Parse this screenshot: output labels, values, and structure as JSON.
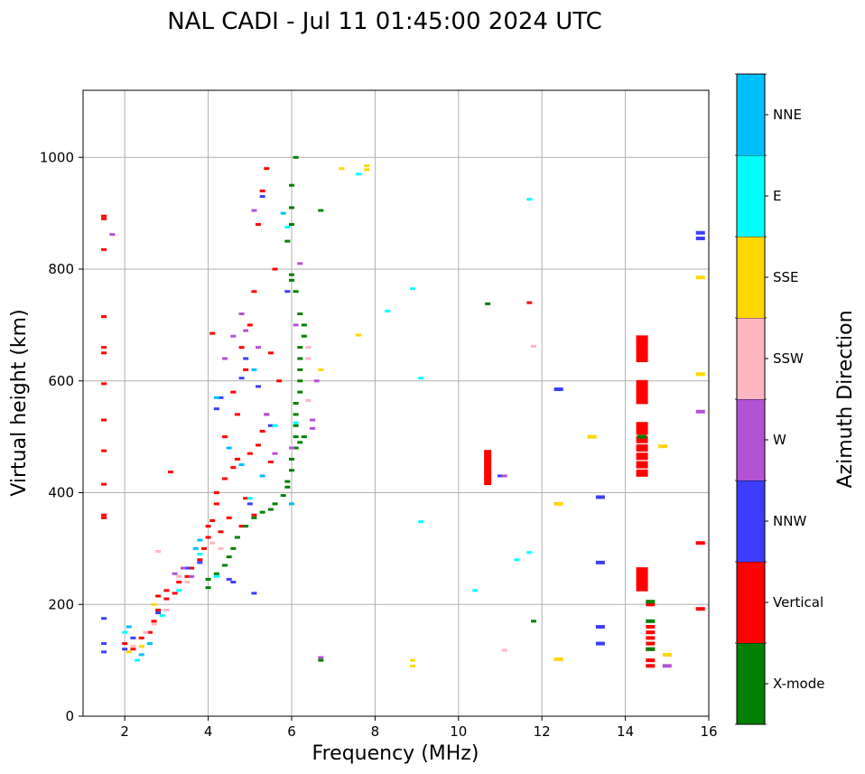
{
  "chart_data": {
    "type": "scatter",
    "title": "NAL CADI - Jul 11 01:45:00 2024 UTC",
    "xlabel": "Frequency (MHz)",
    "ylabel": "Virtual height (km)",
    "xlim": [
      1,
      16
    ],
    "ylim": [
      0,
      1120
    ],
    "grid": true,
    "xticks": [
      2,
      4,
      6,
      8,
      10,
      12,
      14,
      16
    ],
    "yticks": [
      0,
      200,
      400,
      600,
      800,
      1000
    ],
    "colorbar": {
      "label": "Azimuth Direction",
      "position": "right",
      "categories": [
        {
          "name": "X-mode",
          "color": "#008000"
        },
        {
          "name": "Vertical",
          "color": "#ff0000"
        },
        {
          "name": "NNW",
          "color": "#3d3dff"
        },
        {
          "name": "W",
          "color": "#b452d6"
        },
        {
          "name": "SSW",
          "color": "#ffb6c1"
        },
        {
          "name": "SSE",
          "color": "#ffd700"
        },
        {
          "name": "E",
          "color": "#00ffff"
        },
        {
          "name": "NNE",
          "color": "#00bfff"
        }
      ]
    },
    "series": [
      {
        "name": "Vertical",
        "points": [
          [
            1.5,
            895
          ],
          [
            1.5,
            890
          ],
          [
            1.5,
            835
          ],
          [
            1.5,
            715
          ],
          [
            1.5,
            660
          ],
          [
            1.5,
            650
          ],
          [
            1.5,
            595
          ],
          [
            1.5,
            530
          ],
          [
            1.5,
            475
          ],
          [
            1.5,
            415
          ],
          [
            1.5,
            360
          ],
          [
            1.5,
            355
          ],
          [
            2.0,
            130
          ],
          [
            2.2,
            120
          ],
          [
            2.4,
            140
          ],
          [
            2.6,
            150
          ],
          [
            2.7,
            170
          ],
          [
            2.8,
            190
          ],
          [
            2.8,
            215
          ],
          [
            3.0,
            210
          ],
          [
            3.0,
            225
          ],
          [
            3.2,
            220
          ],
          [
            3.3,
            240
          ],
          [
            3.5,
            250
          ],
          [
            3.6,
            265
          ],
          [
            3.8,
            280
          ],
          [
            3.9,
            300
          ],
          [
            4.0,
            320
          ],
          [
            4.0,
            340
          ],
          [
            4.1,
            350
          ],
          [
            4.2,
            380
          ],
          [
            4.2,
            400
          ],
          [
            4.3,
            330
          ],
          [
            4.4,
            425
          ],
          [
            4.5,
            355
          ],
          [
            4.6,
            445
          ],
          [
            4.7,
            460
          ],
          [
            4.8,
            340
          ],
          [
            4.9,
            390
          ],
          [
            5.0,
            470
          ],
          [
            5.1,
            360
          ],
          [
            5.2,
            485
          ],
          [
            5.3,
            510
          ],
          [
            5.4,
            540
          ],
          [
            5.5,
            455
          ],
          [
            4.9,
            620
          ],
          [
            5.0,
            700
          ],
          [
            5.1,
            760
          ],
          [
            5.2,
            880
          ],
          [
            5.3,
            940
          ],
          [
            5.4,
            980
          ],
          [
            5.5,
            650
          ],
          [
            5.6,
            800
          ],
          [
            5.7,
            600
          ],
          [
            4.6,
            580
          ],
          [
            4.4,
            500
          ],
          [
            4.8,
            660
          ],
          [
            4.7,
            540
          ],
          [
            10.7,
            420
          ],
          [
            10.7,
            430
          ],
          [
            10.7,
            440
          ],
          [
            10.7,
            450
          ],
          [
            10.7,
            460
          ],
          [
            10.7,
            470
          ],
          [
            11.7,
            740
          ],
          [
            14.4,
            640
          ],
          [
            14.4,
            650
          ],
          [
            14.4,
            660
          ],
          [
            14.4,
            670
          ],
          [
            14.4,
            675
          ],
          [
            14.4,
            565
          ],
          [
            14.4,
            575
          ],
          [
            14.4,
            585
          ],
          [
            14.4,
            595
          ],
          [
            14.4,
            435
          ],
          [
            14.4,
            450
          ],
          [
            14.4,
            465
          ],
          [
            14.4,
            480
          ],
          [
            14.4,
            495
          ],
          [
            14.4,
            510
          ],
          [
            14.4,
            520
          ],
          [
            14.4,
            230
          ],
          [
            14.4,
            240
          ],
          [
            14.4,
            250
          ],
          [
            14.4,
            260
          ],
          [
            14.6,
            200
          ],
          [
            14.6,
            160
          ],
          [
            14.6,
            150
          ],
          [
            14.6,
            140
          ],
          [
            14.6,
            130
          ],
          [
            14.6,
            120
          ],
          [
            14.6,
            100
          ],
          [
            14.6,
            90
          ],
          [
            15.8,
            310
          ],
          [
            15.8,
            192
          ],
          [
            4.1,
            685
          ],
          [
            3.1,
            437
          ]
        ]
      },
      {
        "name": "X-mode",
        "points": [
          [
            4.0,
            230
          ],
          [
            4.0,
            245
          ],
          [
            4.2,
            255
          ],
          [
            4.4,
            270
          ],
          [
            4.5,
            285
          ],
          [
            4.6,
            300
          ],
          [
            4.7,
            320
          ],
          [
            4.9,
            340
          ],
          [
            5.1,
            355
          ],
          [
            5.3,
            365
          ],
          [
            5.5,
            370
          ],
          [
            5.6,
            380
          ],
          [
            5.8,
            395
          ],
          [
            5.9,
            410
          ],
          [
            5.9,
            420
          ],
          [
            6.0,
            440
          ],
          [
            6.0,
            460
          ],
          [
            6.1,
            480
          ],
          [
            6.1,
            500
          ],
          [
            6.1,
            520
          ],
          [
            6.1,
            540
          ],
          [
            6.1,
            560
          ],
          [
            6.2,
            580
          ],
          [
            6.2,
            600
          ],
          [
            6.2,
            620
          ],
          [
            6.2,
            640
          ],
          [
            6.2,
            660
          ],
          [
            6.3,
            680
          ],
          [
            6.3,
            700
          ],
          [
            6.2,
            720
          ],
          [
            6.1,
            760
          ],
          [
            6.0,
            780
          ],
          [
            6.0,
            790
          ],
          [
            5.9,
            850
          ],
          [
            6.0,
            880
          ],
          [
            6.0,
            910
          ],
          [
            6.0,
            950
          ],
          [
            6.1,
            1000
          ],
          [
            6.2,
            490
          ],
          [
            6.3,
            500
          ],
          [
            6.7,
            905
          ],
          [
            6.7,
            100
          ],
          [
            10.7,
            738
          ],
          [
            11.8,
            170
          ],
          [
            14.4,
            500
          ],
          [
            14.6,
            205
          ],
          [
            14.6,
            170
          ],
          [
            14.6,
            120
          ]
        ]
      },
      {
        "name": "NNW",
        "points": [
          [
            1.5,
            175
          ],
          [
            1.5,
            115
          ],
          [
            1.5,
            130
          ],
          [
            2.0,
            120
          ],
          [
            2.2,
            140
          ],
          [
            2.8,
            185
          ],
          [
            3.5,
            265
          ],
          [
            3.8,
            275
          ],
          [
            4.2,
            550
          ],
          [
            4.3,
            570
          ],
          [
            4.5,
            245
          ],
          [
            4.6,
            240
          ],
          [
            4.8,
            605
          ],
          [
            4.9,
            640
          ],
          [
            5.2,
            590
          ],
          [
            5.3,
            930
          ],
          [
            5.0,
            380
          ],
          [
            5.5,
            520
          ],
          [
            5.9,
            760
          ],
          [
            11.0,
            430
          ],
          [
            12.4,
            585
          ],
          [
            13.4,
            392
          ],
          [
            13.4,
            275
          ],
          [
            13.4,
            160
          ],
          [
            13.4,
            130
          ],
          [
            15.8,
            865
          ],
          [
            15.8,
            855
          ],
          [
            5.1,
            220
          ]
        ]
      },
      {
        "name": "W",
        "points": [
          [
            1.7,
            862
          ],
          [
            3.2,
            255
          ],
          [
            3.4,
            265
          ],
          [
            3.6,
            250
          ],
          [
            4.4,
            640
          ],
          [
            4.6,
            680
          ],
          [
            4.8,
            720
          ],
          [
            4.9,
            690
          ],
          [
            5.1,
            905
          ],
          [
            5.2,
            660
          ],
          [
            5.4,
            540
          ],
          [
            5.6,
            470
          ],
          [
            6.0,
            480
          ],
          [
            6.1,
            700
          ],
          [
            6.2,
            810
          ],
          [
            6.5,
            530
          ],
          [
            6.5,
            515
          ],
          [
            6.6,
            600
          ],
          [
            6.7,
            105
          ],
          [
            11.1,
            430
          ],
          [
            15.0,
            90
          ],
          [
            15.8,
            545
          ]
        ]
      },
      {
        "name": "SSW",
        "points": [
          [
            2.2,
            125
          ],
          [
            2.5,
            150
          ],
          [
            2.7,
            165
          ],
          [
            3.0,
            190
          ],
          [
            2.8,
            295
          ],
          [
            3.3,
            250
          ],
          [
            3.5,
            240
          ],
          [
            4.3,
            300
          ],
          [
            4.1,
            310
          ],
          [
            6.4,
            565
          ],
          [
            6.4,
            640
          ],
          [
            6.4,
            660
          ],
          [
            11.1,
            118
          ],
          [
            11.8,
            662
          ]
        ]
      },
      {
        "name": "SSE",
        "points": [
          [
            2.1,
            115
          ],
          [
            2.4,
            125
          ],
          [
            2.7,
            200
          ],
          [
            7.2,
            980
          ],
          [
            7.8,
            985
          ],
          [
            7.8,
            978
          ],
          [
            7.6,
            682
          ],
          [
            6.7,
            620
          ],
          [
            8.9,
            100
          ],
          [
            8.9,
            90
          ],
          [
            12.4,
            380
          ],
          [
            12.4,
            102
          ],
          [
            13.2,
            500
          ],
          [
            14.9,
            483
          ],
          [
            15.0,
            110
          ],
          [
            15.8,
            785
          ],
          [
            15.8,
            612
          ]
        ]
      },
      {
        "name": "E",
        "points": [
          [
            2.0,
            150
          ],
          [
            2.3,
            100
          ],
          [
            2.9,
            180
          ],
          [
            3.3,
            225
          ],
          [
            3.8,
            290
          ],
          [
            4.2,
            250
          ],
          [
            5.0,
            390
          ],
          [
            5.6,
            520
          ],
          [
            6.1,
            525
          ],
          [
            7.6,
            970
          ],
          [
            8.3,
            725
          ],
          [
            8.9,
            765
          ],
          [
            9.1,
            605
          ],
          [
            9.1,
            348
          ],
          [
            10.4,
            225
          ],
          [
            11.4,
            280
          ],
          [
            11.7,
            293
          ],
          [
            11.7,
            925
          ],
          [
            5.9,
            875
          ]
        ]
      },
      {
        "name": "NNE",
        "points": [
          [
            2.1,
            160
          ],
          [
            2.4,
            110
          ],
          [
            2.6,
            130
          ],
          [
            3.7,
            300
          ],
          [
            3.8,
            315
          ],
          [
            4.2,
            570
          ],
          [
            4.5,
            480
          ],
          [
            4.8,
            450
          ],
          [
            5.3,
            430
          ],
          [
            5.8,
            900
          ],
          [
            6.0,
            380
          ],
          [
            5.1,
            620
          ]
        ]
      }
    ]
  }
}
